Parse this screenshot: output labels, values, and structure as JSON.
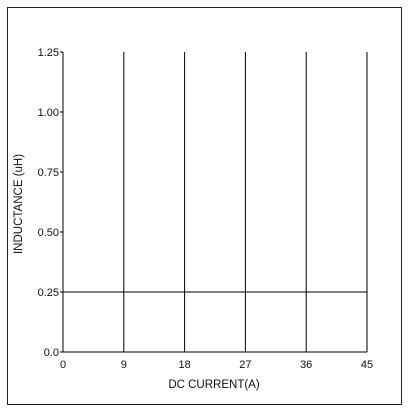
{
  "chart_data": {
    "type": "line",
    "title": "",
    "xlabel": "DC CURRENT(A)",
    "ylabel": "INDUCTANCE (uH)",
    "xlim": [
      0,
      45
    ],
    "ylim": [
      0,
      1.25
    ],
    "x_ticks": [
      "0",
      "9",
      "18",
      "27",
      "36",
      "45"
    ],
    "y_ticks": [
      "0.0",
      "0.25",
      "0.50",
      "0.75",
      "1.00",
      "1.25"
    ],
    "grid": "vertical",
    "series": [
      {
        "x": [
          0,
          45
        ],
        "values": [
          0.25,
          0.25
        ],
        "color": "#000000"
      }
    ]
  }
}
